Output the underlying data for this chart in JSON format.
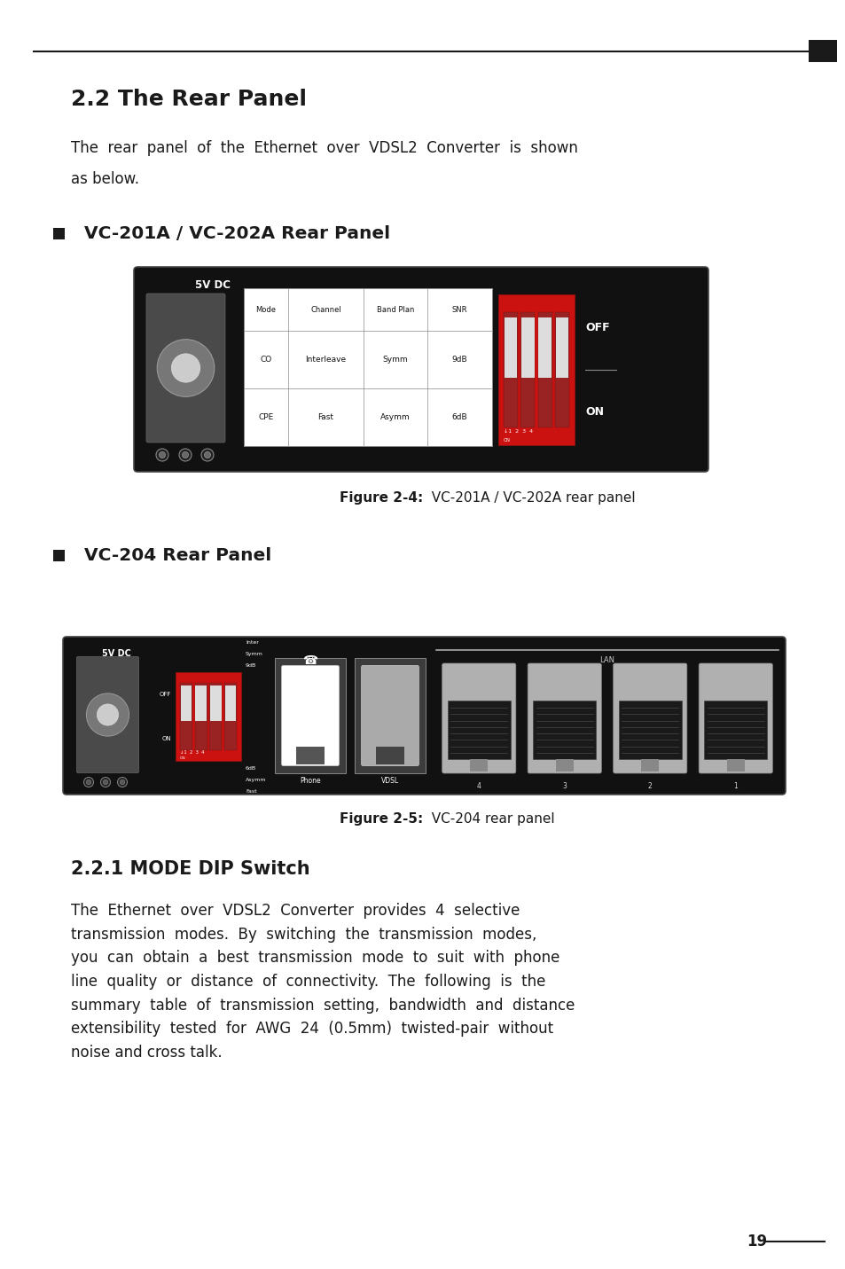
{
  "bg_color": "#ffffff",
  "text_color": "#1a1a1a",
  "page_width": 9.54,
  "page_height": 14.31,
  "section_title": "2.2 The Rear Panel",
  "body_text1_line1": "The  rear  panel  of  the  Ethernet  over  VDSL2  Converter  is  shown",
  "body_text1_line2": "as below.",
  "body_fontsize": 12.0,
  "subsection1_title": "VC-201A / VC-202A Rear Panel",
  "subsection1_fontsize": 14.5,
  "fig1_caption_bold": "Figure 2-4:",
  "fig1_caption_rest": "  VC-201A / VC-202A rear panel",
  "subsection2_title": "VC-204 Rear Panel",
  "fig2_caption_bold": "Figure 2-5:",
  "fig2_caption_rest": "  VC-204 rear panel",
  "subsection3_title": "2.2.1 MODE DIP Switch",
  "subsection3_fontsize": 15,
  "body_text3": "The  Ethernet  over  VDSL2  Converter  provides  4  selective\ntransmission  modes.  By  switching  the  transmission  modes,\nyou  can  obtain  a  best  transmission  mode  to  suit  with  phone\nline  quality  or  distance  of  connectivity.  The  following  is  the\nsummary  table  of  transmission  setting,  bandwidth  and  distance\nextensibility  tested  for  AWG  24  (0.5mm)  twisted-pair  without\nnoise and cross talk.",
  "page_number": "19",
  "panel_dark": "#111111",
  "dip_red": "#cc1111",
  "dip_dark_bar": "#881111"
}
